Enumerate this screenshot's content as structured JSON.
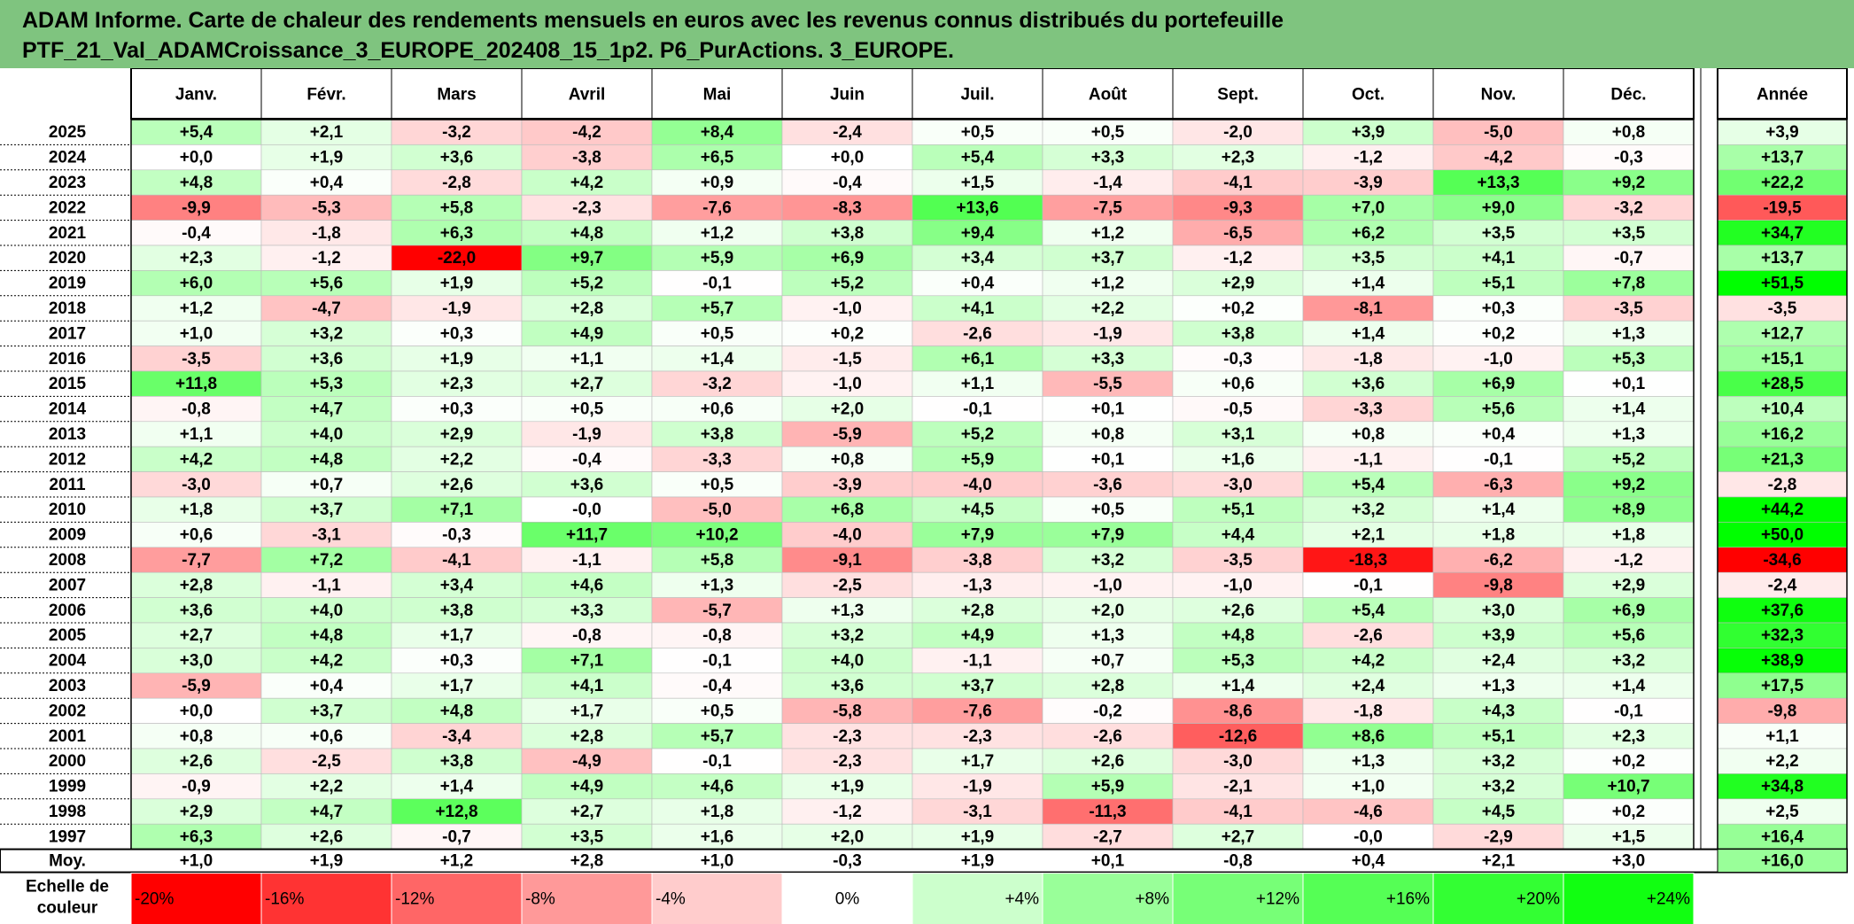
{
  "title_line1": "ADAM Informe. Carte de chaleur des rendements mensuels en euros avec les revenus connus distribués du portefeuille",
  "title_line2": "PTF_21_Val_ADAMCroissance_3_EUROPE_202408_15_1p2. P6_PurActions. 3_EUROPE.",
  "chart_data": {
    "type": "heatmap",
    "columns": [
      "Janv.",
      "Févr.",
      "Mars",
      "Avril",
      "Mai",
      "Juin",
      "Juil.",
      "Août",
      "Sept.",
      "Oct.",
      "Nov.",
      "Déc."
    ],
    "year_header": "Année",
    "rows": [
      {
        "label": "2025",
        "values": [
          "+5,4",
          "+2,1",
          "-3,2",
          "-4,2",
          "+8,4",
          "-2,4",
          "+0,5",
          "+0,5",
          "-2,0",
          "+3,9",
          "-5,0",
          "+0,8"
        ],
        "year": "+3,9"
      },
      {
        "label": "2024",
        "values": [
          "+0,0",
          "+1,9",
          "+3,6",
          "-3,8",
          "+6,5",
          "+0,0",
          "+5,4",
          "+3,3",
          "+2,3",
          "-1,2",
          "-4,2",
          "-0,3"
        ],
        "year": "+13,7"
      },
      {
        "label": "2023",
        "values": [
          "+4,8",
          "+0,4",
          "-2,8",
          "+4,2",
          "+0,9",
          "-0,4",
          "+1,5",
          "-1,4",
          "-4,1",
          "-3,9",
          "+13,3",
          "+9,2"
        ],
        "year": "+22,2"
      },
      {
        "label": "2022",
        "values": [
          "-9,9",
          "-5,3",
          "+5,8",
          "-2,3",
          "-7,6",
          "-8,3",
          "+13,6",
          "-7,5",
          "-9,3",
          "+7,0",
          "+9,0",
          "-3,2"
        ],
        "year": "-19,5"
      },
      {
        "label": "2021",
        "values": [
          "-0,4",
          "-1,8",
          "+6,3",
          "+4,8",
          "+1,2",
          "+3,8",
          "+9,4",
          "+1,2",
          "-6,5",
          "+6,2",
          "+3,5",
          "+3,5"
        ],
        "year": "+34,7"
      },
      {
        "label": "2020",
        "values": [
          "+2,3",
          "-1,2",
          "-22,0",
          "+9,7",
          "+5,9",
          "+6,9",
          "+3,4",
          "+3,7",
          "-1,2",
          "+3,5",
          "+4,1",
          "-0,7"
        ],
        "year": "+13,7"
      },
      {
        "label": "2019",
        "values": [
          "+6,0",
          "+5,6",
          "+1,9",
          "+5,2",
          "-0,1",
          "+5,2",
          "+0,4",
          "+1,2",
          "+2,9",
          "+1,4",
          "+5,1",
          "+7,8"
        ],
        "year": "+51,5"
      },
      {
        "label": "2018",
        "values": [
          "+1,2",
          "-4,7",
          "-1,9",
          "+2,8",
          "+5,7",
          "-1,0",
          "+4,1",
          "+2,2",
          "+0,2",
          "-8,1",
          "+0,3",
          "-3,5"
        ],
        "year": "-3,5"
      },
      {
        "label": "2017",
        "values": [
          "+1,0",
          "+3,2",
          "+0,3",
          "+4,9",
          "+0,5",
          "+0,2",
          "-2,6",
          "-1,9",
          "+3,8",
          "+1,4",
          "+0,2",
          "+1,3"
        ],
        "year": "+12,7"
      },
      {
        "label": "2016",
        "values": [
          "-3,5",
          "+3,6",
          "+1,9",
          "+1,1",
          "+1,4",
          "-1,5",
          "+6,1",
          "+3,3",
          "-0,3",
          "-1,8",
          "-1,0",
          "+5,3"
        ],
        "year": "+15,1"
      },
      {
        "label": "2015",
        "values": [
          "+11,8",
          "+5,3",
          "+2,3",
          "+2,7",
          "-3,2",
          "-1,0",
          "+1,1",
          "-5,5",
          "+0,6",
          "+3,6",
          "+6,9",
          "+0,1"
        ],
        "year": "+28,5"
      },
      {
        "label": "2014",
        "values": [
          "-0,8",
          "+4,7",
          "+0,3",
          "+0,5",
          "+0,6",
          "+2,0",
          "-0,1",
          "+0,1",
          "-0,5",
          "-3,3",
          "+5,6",
          "+1,4"
        ],
        "year": "+10,4"
      },
      {
        "label": "2013",
        "values": [
          "+1,1",
          "+4,0",
          "+2,9",
          "-1,9",
          "+3,8",
          "-5,9",
          "+5,2",
          "+0,8",
          "+3,1",
          "+0,8",
          "+0,4",
          "+1,3"
        ],
        "year": "+16,2"
      },
      {
        "label": "2012",
        "values": [
          "+4,2",
          "+4,8",
          "+2,2",
          "-0,4",
          "-3,3",
          "+0,8",
          "+5,9",
          "+0,1",
          "+1,6",
          "-1,1",
          "-0,1",
          "+5,2"
        ],
        "year": "+21,3"
      },
      {
        "label": "2011",
        "values": [
          "-3,0",
          "+0,7",
          "+2,6",
          "+3,6",
          "+0,5",
          "-3,9",
          "-4,0",
          "-3,6",
          "-3,0",
          "+5,4",
          "-6,3",
          "+9,2"
        ],
        "year": "-2,8"
      },
      {
        "label": "2010",
        "values": [
          "+1,8",
          "+3,7",
          "+7,1",
          "-0,0",
          "-5,0",
          "+6,8",
          "+4,5",
          "+0,5",
          "+5,1",
          "+3,2",
          "+1,4",
          "+8,9"
        ],
        "year": "+44,2"
      },
      {
        "label": "2009",
        "values": [
          "+0,6",
          "-3,1",
          "-0,3",
          "+11,7",
          "+10,2",
          "-4,0",
          "+7,9",
          "+7,9",
          "+4,4",
          "+2,1",
          "+1,8",
          "+1,8"
        ],
        "year": "+50,0"
      },
      {
        "label": "2008",
        "values": [
          "-7,7",
          "+7,2",
          "-4,1",
          "-1,1",
          "+5,8",
          "-9,1",
          "-3,8",
          "+3,2",
          "-3,5",
          "-18,3",
          "-6,2",
          "-1,2"
        ],
        "year": "-34,6"
      },
      {
        "label": "2007",
        "values": [
          "+2,8",
          "-1,1",
          "+3,4",
          "+4,6",
          "+1,3",
          "-2,5",
          "-1,3",
          "-1,0",
          "-1,0",
          "-0,1",
          "-9,8",
          "+2,9"
        ],
        "year": "-2,4"
      },
      {
        "label": "2006",
        "values": [
          "+3,6",
          "+4,0",
          "+3,8",
          "+3,3",
          "-5,7",
          "+1,3",
          "+2,8",
          "+2,0",
          "+2,6",
          "+5,4",
          "+3,0",
          "+6,9"
        ],
        "year": "+37,6"
      },
      {
        "label": "2005",
        "values": [
          "+2,7",
          "+4,8",
          "+1,7",
          "-0,8",
          "-0,8",
          "+3,2",
          "+4,9",
          "+1,3",
          "+4,8",
          "-2,6",
          "+3,9",
          "+5,6"
        ],
        "year": "+32,3"
      },
      {
        "label": "2004",
        "values": [
          "+3,0",
          "+4,2",
          "+0,3",
          "+7,1",
          "-0,1",
          "+4,0",
          "-1,1",
          "+0,7",
          "+5,3",
          "+4,2",
          "+2,4",
          "+3,2"
        ],
        "year": "+38,9"
      },
      {
        "label": "2003",
        "values": [
          "-5,9",
          "+0,4",
          "+1,7",
          "+4,1",
          "-0,4",
          "+3,6",
          "+3,7",
          "+2,8",
          "+1,4",
          "+2,4",
          "+1,3",
          "+1,4"
        ],
        "year": "+17,5"
      },
      {
        "label": "2002",
        "values": [
          "+0,0",
          "+3,7",
          "+4,8",
          "+1,7",
          "+0,5",
          "-5,8",
          "-7,6",
          "-0,2",
          "-8,6",
          "-1,8",
          "+4,3",
          "-0,1"
        ],
        "year": "-9,8"
      },
      {
        "label": "2001",
        "values": [
          "+0,8",
          "+0,6",
          "-3,4",
          "+2,8",
          "+5,7",
          "-2,3",
          "-2,3",
          "-2,6",
          "-12,6",
          "+8,6",
          "+5,1",
          "+2,3"
        ],
        "year": "+1,1"
      },
      {
        "label": "2000",
        "values": [
          "+2,6",
          "-2,5",
          "+3,8",
          "-4,9",
          "-0,1",
          "-2,3",
          "+1,7",
          "+2,6",
          "-3,0",
          "+1,3",
          "+3,2",
          "+0,2"
        ],
        "year": "+2,2"
      },
      {
        "label": "1999",
        "values": [
          "-0,9",
          "+2,2",
          "+1,4",
          "+4,9",
          "+4,6",
          "+1,9",
          "-1,9",
          "+5,9",
          "-2,1",
          "+1,0",
          "+3,2",
          "+10,7"
        ],
        "year": "+34,8"
      },
      {
        "label": "1998",
        "values": [
          "+2,9",
          "+4,7",
          "+12,8",
          "+2,7",
          "+1,8",
          "-1,2",
          "-3,1",
          "-11,3",
          "-4,1",
          "-4,6",
          "+4,5",
          "+0,2"
        ],
        "year": "+2,5"
      },
      {
        "label": "1997",
        "values": [
          "+6,3",
          "+2,6",
          "-0,7",
          "+3,5",
          "+1,6",
          "+2,0",
          "+1,9",
          "-2,7",
          "+2,7",
          "-0,0",
          "-2,9",
          "+1,5"
        ],
        "year": "+16,4"
      }
    ],
    "average_row": {
      "label": "Moy.",
      "values": [
        "+1,0",
        "+1,9",
        "+1,2",
        "+2,8",
        "+1,0",
        "-0,3",
        "+1,9",
        "+0,1",
        "-0,8",
        "+0,4",
        "+2,1",
        "+3,0"
      ],
      "year": "+16,0"
    },
    "scale_label_line1": "Echelle de",
    "scale_label_line2": "couleur",
    "scale": [
      {
        "label": "-20%",
        "value": -20,
        "color": "#ff0000"
      },
      {
        "label": "-16%",
        "value": -16,
        "color": "#ff3333"
      },
      {
        "label": "-12%",
        "value": -12,
        "color": "#ff6666"
      },
      {
        "label": "-8%",
        "value": -8,
        "color": "#ff9999"
      },
      {
        "label": "-4%",
        "value": -4,
        "color": "#ffcccc"
      },
      {
        "label": "0%",
        "value": 0,
        "color": "#ffffff"
      },
      {
        "label": "+4%",
        "value": 4,
        "color": "#ccffcc"
      },
      {
        "label": "+8%",
        "value": 8,
        "color": "#99ff99"
      },
      {
        "label": "+12%",
        "value": 12,
        "color": "#77ff77"
      },
      {
        "label": "+16%",
        "value": 16,
        "color": "#55ff55"
      },
      {
        "label": "+20%",
        "value": 20,
        "color": "#33ff33"
      },
      {
        "label": "+24%",
        "value": 24,
        "color": "#11ff11"
      }
    ]
  }
}
